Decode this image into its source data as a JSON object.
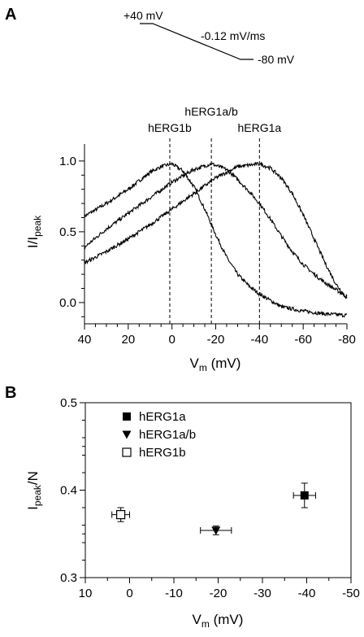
{
  "panels": {
    "a": "A",
    "b": "B"
  },
  "protocol": {
    "start_label": "+40 mV",
    "rate_label": "-0.12 mV/ms",
    "end_label": "-80 mV"
  },
  "colors": {
    "ink": "#000000",
    "background": "#ffffff"
  },
  "chart_data": [
    {
      "type": "line",
      "panel": "A",
      "xlabel": "V",
      "xlabel_sub": "m",
      "xlabel_unit": " (mV)",
      "ylabel": "I/I",
      "ylabel_sub": "peak",
      "xlim": [
        40,
        -80
      ],
      "ylim": [
        -0.15,
        1.12
      ],
      "x_reversed": true,
      "xticks": [
        40,
        20,
        0,
        -20,
        -40,
        -60,
        -80
      ],
      "yticks": [
        0.0,
        0.5,
        1.0
      ],
      "ytick_labels": [
        "0.0",
        "0.5",
        "1.0"
      ],
      "grid": false,
      "series": [
        {
          "name": "hERG1b",
          "peak_v": 1,
          "peak_i": 0.98,
          "x": [
            40,
            30,
            20,
            10,
            5,
            0,
            -5,
            -10,
            -15,
            -20,
            -25,
            -30,
            -35,
            -40,
            -50,
            -60,
            -70,
            -80
          ],
          "y": [
            0.61,
            0.7,
            0.8,
            0.92,
            0.96,
            0.98,
            0.93,
            0.82,
            0.66,
            0.48,
            0.32,
            0.2,
            0.12,
            0.06,
            -0.03,
            -0.06,
            -0.08,
            -0.09
          ]
        },
        {
          "name": "hERG1a/b",
          "peak_v": -18,
          "peak_i": 0.98,
          "x": [
            40,
            30,
            20,
            10,
            0,
            -10,
            -18,
            -25,
            -30,
            -35,
            -40,
            -45,
            -50,
            -55,
            -60,
            -65,
            -70,
            -80
          ],
          "y": [
            0.39,
            0.52,
            0.63,
            0.74,
            0.85,
            0.94,
            0.98,
            0.94,
            0.87,
            0.79,
            0.7,
            0.59,
            0.47,
            0.36,
            0.27,
            0.2,
            0.14,
            0.04
          ]
        },
        {
          "name": "hERG1a",
          "peak_v": -40,
          "peak_i": 0.98,
          "x": [
            40,
            30,
            20,
            10,
            0,
            -10,
            -20,
            -30,
            -40,
            -45,
            -50,
            -55,
            -60,
            -65,
            -70,
            -75,
            -80
          ],
          "y": [
            0.28,
            0.36,
            0.45,
            0.55,
            0.66,
            0.77,
            0.88,
            0.96,
            0.98,
            0.95,
            0.88,
            0.77,
            0.62,
            0.45,
            0.28,
            0.13,
            0.03
          ]
        }
      ],
      "annotations": [
        {
          "text": "hERG1b",
          "x": 1
        },
        {
          "text": "hERG1a/b",
          "x": -18
        },
        {
          "text": "hERG1a",
          "x": -40
        }
      ]
    },
    {
      "type": "scatter",
      "panel": "B",
      "xlabel": "V",
      "xlabel_sub": "m",
      "xlabel_unit": " (mV)",
      "ylabel": "I",
      "ylabel_sub": "peak",
      "ylabel_unit": "/N",
      "xlim": [
        10,
        -50
      ],
      "ylim": [
        0.3,
        0.5
      ],
      "x_reversed": true,
      "xticks": [
        10,
        0,
        -10,
        -20,
        -30,
        -40,
        -50
      ],
      "yticks": [
        0.3,
        0.4,
        0.5
      ],
      "ytick_labels": [
        "0.3",
        "0.4",
        "0.5"
      ],
      "grid": false,
      "legend_position": "top-left",
      "series": [
        {
          "name": "hERG1a",
          "marker": "filled-square",
          "x": -39.5,
          "y": 0.394,
          "x_err": 2.5,
          "y_err": 0.014
        },
        {
          "name": "hERG1a/b",
          "marker": "filled-triangle-down",
          "x": -19.5,
          "y": 0.354,
          "x_err": 3.5,
          "y_err": 0.005
        },
        {
          "name": "hERG1b",
          "marker": "open-square",
          "x": 2,
          "y": 0.372,
          "x_err": 2,
          "y_err": 0.008
        }
      ]
    }
  ]
}
